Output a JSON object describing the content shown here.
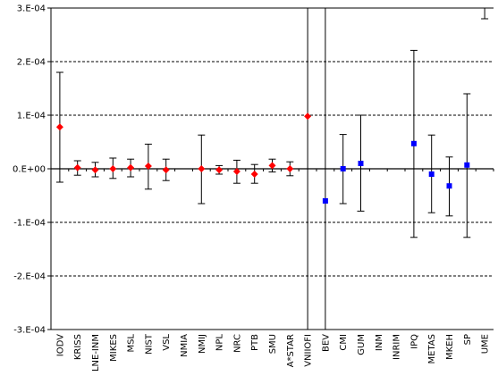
{
  "chart_data": {
    "type": "scatter",
    "title": "",
    "xlabel": "",
    "ylabel": "",
    "ylim": [
      -0.0003,
      0.0003
    ],
    "y_ticks": [
      {
        "value": 0.0003,
        "label": "3.E-04"
      },
      {
        "value": 0.0002,
        "label": "2.E-04"
      },
      {
        "value": 0.0001,
        "label": "1.E-04"
      },
      {
        "value": 0.0,
        "label": "0.E+00"
      },
      {
        "value": -0.0001,
        "label": "-1.E-04"
      },
      {
        "value": -0.0002,
        "label": "-2.E-04"
      },
      {
        "value": -0.0003,
        "label": "-3.E-04"
      }
    ],
    "grid": "horizontal-dashed",
    "legend": "none",
    "categories": [
      "IODV",
      "KRISS",
      "LNE-INM",
      "MIKES",
      "MSL",
      "NIST",
      "VSL",
      "NMIA",
      "NMIJ",
      "NPL",
      "NRC",
      "PTB",
      "SMU",
      "A*STAR",
      "VNIIOFI",
      "BEV",
      "CMI",
      "GUM",
      "INM",
      "INRIM",
      "IPQ",
      "METAS",
      "MKEH",
      "SP",
      "UME"
    ],
    "series": [
      {
        "color": "#ff0000",
        "marker": "diamond",
        "points": [
          {
            "x": "IODV",
            "y": 7.8e-05,
            "lo": -2.5e-05,
            "hi": 0.00018
          },
          {
            "x": "KRISS",
            "y": 2e-06,
            "lo": -1.2e-05,
            "hi": 1.5e-05
          },
          {
            "x": "LNE-INM",
            "y": -2e-06,
            "lo": -1.5e-05,
            "hi": 1.2e-05
          },
          {
            "x": "MIKES",
            "y": 0.0,
            "lo": -1.8e-05,
            "hi": 2e-05
          },
          {
            "x": "MSL",
            "y": 2e-06,
            "lo": -1.5e-05,
            "hi": 1.8e-05
          },
          {
            "x": "NIST",
            "y": 5e-06,
            "lo": -3.8e-05,
            "hi": 4.6e-05
          },
          {
            "x": "VSL",
            "y": -2e-06,
            "lo": -2.2e-05,
            "hi": 1.8e-05
          },
          {
            "x": "NMIJ",
            "y": 0.0,
            "lo": -6.5e-05,
            "hi": 6.3e-05
          },
          {
            "x": "NPL",
            "y": -2e-06,
            "lo": -1e-05,
            "hi": 6e-06
          },
          {
            "x": "NRC",
            "y": -5e-06,
            "lo": -2.7e-05,
            "hi": 1.6e-05
          },
          {
            "x": "PTB",
            "y": -1e-05,
            "lo": -2.7e-05,
            "hi": 8e-06
          },
          {
            "x": "SMU",
            "y": 6e-06,
            "lo": -6e-06,
            "hi": 1.8e-05
          },
          {
            "x": "A*STAR",
            "y": 0.0,
            "lo": -1.3e-05,
            "hi": 1.3e-05
          },
          {
            "x": "VNIIOFI",
            "y": 9.8e-05,
            "lo": -0.0003,
            "hi": 0.0003
          }
        ]
      },
      {
        "color": "#0000ff",
        "marker": "square",
        "points": [
          {
            "x": "BEV",
            "y": -6e-05,
            "lo": -0.0003,
            "hi": 0.0003
          },
          {
            "x": "CMI",
            "y": 0.0,
            "lo": -6.5e-05,
            "hi": 6.4e-05
          },
          {
            "x": "GUM",
            "y": 1e-05,
            "lo": -7.9e-05,
            "hi": 0.0001
          },
          {
            "x": "IPQ",
            "y": 4.7e-05,
            "lo": -0.000128,
            "hi": 0.000221
          },
          {
            "x": "METAS",
            "y": -1e-05,
            "lo": -8.2e-05,
            "hi": 6.3e-05
          },
          {
            "x": "MKEH",
            "y": -3.2e-05,
            "lo": -8.8e-05,
            "hi": 2.2e-05
          },
          {
            "x": "SP",
            "y": 7e-06,
            "lo": -0.000128,
            "hi": 0.00014
          },
          {
            "x": "UME",
            "y": 0.00034,
            "lo": 0.00028,
            "hi": 0.0003
          }
        ]
      }
    ]
  }
}
